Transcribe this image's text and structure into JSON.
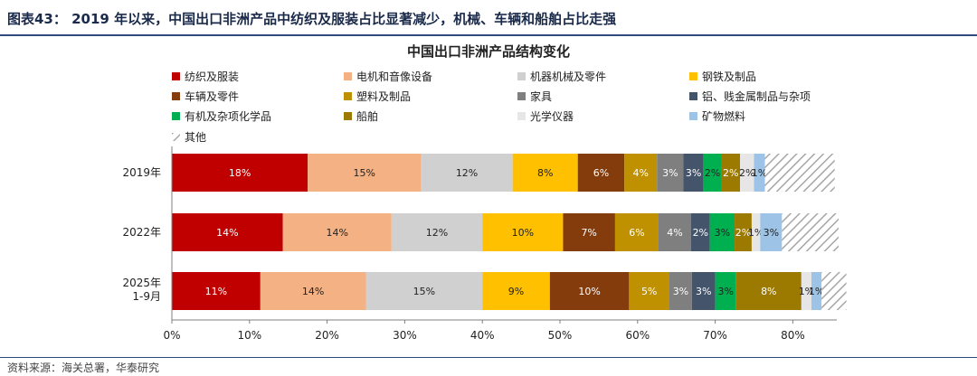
{
  "header": {
    "title": "图表43： 2019 年以来，中国出口非洲产品中纺织及服装占比显著减少，机械、车辆和船舶占比走强"
  },
  "source": {
    "text": "资料来源：海关总署，华泰研究"
  },
  "chart_data": {
    "type": "bar",
    "orientation": "horizontal",
    "stacked": true,
    "title": "中国出口非洲产品结构变化",
    "xlabel": "",
    "ylabel": "",
    "xlim": [
      0,
      85
    ],
    "xticks": [
      "0%",
      "10%",
      "20%",
      "30%",
      "40%",
      "50%",
      "60%",
      "70%",
      "80%"
    ],
    "categories": [
      "2019年",
      "2022年",
      "2025年\n1-9月"
    ],
    "legend_position": "top",
    "grid": false,
    "series": [
      {
        "name": "纺织及服装",
        "color": "#c00000",
        "label_color": "#ffffff",
        "values": [
          17.5,
          14.3,
          11.4
        ],
        "labels": [
          "18%",
          "14%",
          "11%"
        ]
      },
      {
        "name": "电机和音像设备",
        "color": "#f4b183",
        "label_color": "#222222",
        "values": [
          14.6,
          14.0,
          13.6
        ],
        "labels": [
          "15%",
          "14%",
          "14%"
        ]
      },
      {
        "name": "机器机械及零件",
        "color": "#d0d0d0",
        "label_color": "#222222",
        "values": [
          11.8,
          11.7,
          15.0
        ],
        "labels": [
          "12%",
          "12%",
          "15%"
        ]
      },
      {
        "name": "钢铁及制品",
        "color": "#ffc000",
        "label_color": "#222222",
        "values": [
          8.4,
          10.4,
          8.7
        ],
        "labels": [
          "8%",
          "10%",
          "9%"
        ]
      },
      {
        "name": "车辆及零件",
        "color": "#843c0c",
        "label_color": "#ffffff",
        "values": [
          6.0,
          6.7,
          10.2
        ],
        "labels": [
          "6%",
          "7%",
          "10%"
        ]
      },
      {
        "name": "塑料及制品",
        "color": "#bf9000",
        "label_color": "#ffffff",
        "values": [
          4.2,
          5.6,
          5.2
        ],
        "labels": [
          "4%",
          "6%",
          "5%"
        ]
      },
      {
        "name": "家具",
        "color": "#7f7f7f",
        "label_color": "#ffffff",
        "values": [
          3.4,
          4.2,
          2.9
        ],
        "labels": [
          "3%",
          "4%",
          "3%"
        ]
      },
      {
        "name": "铝、贱金属制品与杂项",
        "color": "#44546a",
        "label_color": "#ffffff",
        "values": [
          2.6,
          2.4,
          3.0
        ],
        "labels": [
          "3%",
          "2%",
          "3%"
        ]
      },
      {
        "name": "有机及杂项化学品",
        "color": "#00b050",
        "label_color": "#222222",
        "values": [
          2.3,
          3.2,
          2.7
        ],
        "labels": [
          "2%",
          "3%",
          "3%"
        ]
      },
      {
        "name": "船舶",
        "color": "#9c7a00",
        "label_color": "#ffffff",
        "values": [
          2.4,
          2.2,
          8.4
        ],
        "labels": [
          "2%",
          "2%",
          "8%"
        ]
      },
      {
        "name": "光学仪器",
        "color": "#e7e6e6",
        "label_color": "#222222",
        "values": [
          1.8,
          1.1,
          1.3
        ],
        "labels": [
          "2%",
          "1%",
          "1%"
        ]
      },
      {
        "name": "矿物燃料",
        "color": "#9dc3e6",
        "label_color": "#222222",
        "values": [
          1.4,
          2.8,
          1.3
        ],
        "labels": [
          "1%",
          "3%",
          "1%"
        ]
      },
      {
        "name": "其他",
        "color": "hatch",
        "label_color": "#222222",
        "values": [
          9.0,
          7.3,
          3.2
        ],
        "labels": [
          "",
          "",
          ""
        ]
      }
    ]
  }
}
